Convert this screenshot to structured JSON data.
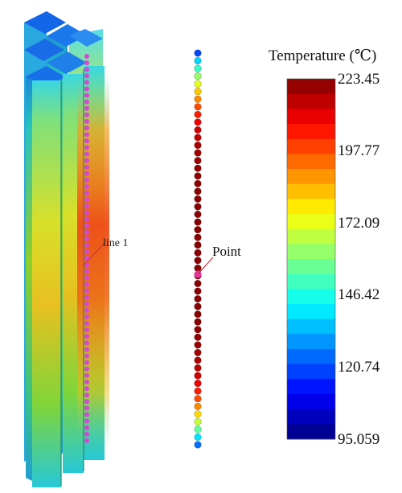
{
  "legend": {
    "title": "Temperature (℃)",
    "max": 223.45,
    "min": 95.059,
    "tick_labels": [
      "223.45",
      "197.77",
      "172.09",
      "146.42",
      "120.74",
      "95.059"
    ],
    "bands": 24
  },
  "annotations": {
    "line_label": "line 1",
    "point_label": "Point"
  },
  "colors": {
    "point_marker": "#e0389a",
    "line_marker": "#d548d2",
    "leader_line": "#c83040"
  },
  "beads": [
    120,
    138,
    150,
    162,
    172,
    182,
    190,
    198,
    204,
    209,
    213,
    216,
    218,
    219,
    220,
    221,
    221,
    222,
    222,
    222,
    222,
    222,
    222,
    222,
    222,
    222,
    222,
    222,
    222,
    222,
    222,
    222,
    222,
    222,
    222,
    222,
    221,
    221,
    220,
    219,
    218,
    216,
    213,
    209,
    204,
    198,
    190,
    180,
    168,
    155,
    140,
    125
  ]
}
